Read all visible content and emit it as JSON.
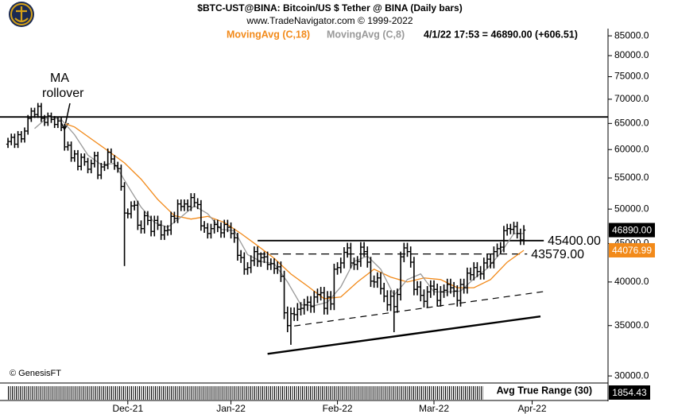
{
  "chart_data": {
    "type": "ohlc",
    "title": "$BTC-UST@BINA:  Bitcoin/US $ Tether @ BINA  (Daily bars)",
    "subtitle": "www.TradeNavigator.com © 1999-2022",
    "status": "4/1/22 17:53 = 46890.00 (+606.51)",
    "credit": "© GenesisFT",
    "annotation_lines": [
      "MA",
      "rollover"
    ],
    "log_scale": true,
    "xlim": [
      -2.4,
      180.3
    ],
    "ylim": [
      29500,
      86900
    ],
    "yticks": [
      {
        "value": 30000,
        "label": "30000.0"
      },
      {
        "value": 35000,
        "label": "35000.0"
      },
      {
        "value": 40000,
        "label": "40000.0"
      },
      {
        "value": 45000,
        "label": "45000.0"
      },
      {
        "value": 50000,
        "label": "50000.0"
      },
      {
        "value": 55000,
        "label": "55000.0"
      },
      {
        "value": 60000,
        "label": "60000.0"
      },
      {
        "value": 65000,
        "label": "65000.0"
      },
      {
        "value": 70000,
        "label": "70000.0"
      },
      {
        "value": 75000,
        "label": "75000.0"
      },
      {
        "value": 80000,
        "label": "80000.0"
      },
      {
        "value": 85000,
        "label": "85000.0"
      }
    ],
    "xticks": [
      {
        "value": 36,
        "label": "Dec-21"
      },
      {
        "value": 67,
        "label": "Jan-22"
      },
      {
        "value": 99,
        "label": "Feb-22"
      },
      {
        "value": 128,
        "label": "Mar-22"
      },
      {
        "value": 157.5,
        "label": "Apr-22"
      }
    ],
    "bar_color": "#000000",
    "open": [
      61000,
      61500,
      62300,
      61000,
      62800,
      62000,
      63500,
      66000,
      67500,
      66800,
      68500,
      66000,
      65200,
      66500,
      65800,
      64800,
      65500,
      64200,
      60500,
      60800,
      58500,
      59200,
      57000,
      58600,
      57800,
      56500,
      57500,
      58900,
      55500,
      56900,
      57200,
      59500,
      58300,
      57100,
      56600,
      53600,
      49400,
      49300,
      50500,
      50600,
      47600,
      47100,
      49000,
      48300,
      46700,
      48300,
      47600,
      46200,
      46800,
      46900,
      48900,
      48600,
      50800,
      50400,
      50800,
      50400,
      51800,
      51000,
      50700,
      47500,
      47200,
      46400,
      47100,
      47700,
      47300,
      46500,
      47700,
      47300,
      46400,
      45800,
      43400,
      43100,
      41600,
      41800,
      42700,
      43900,
      42600,
      43100,
      43200,
      42200,
      42300,
      41700,
      41900,
      40700,
      36400,
      35000,
      36300,
      36200,
      36800,
      36900,
      37300,
      37600,
      37100,
      38200,
      38500,
      38700,
      36900,
      38200,
      37400,
      41600,
      41800,
      42400,
      43800,
      44400,
      42400,
      42200,
      42600,
      44500,
      43900,
      42500,
      40100,
      40000,
      40500,
      39200,
      38300,
      37300,
      38300,
      37100,
      38500,
      43200,
      44400,
      43900,
      42500,
      39100,
      39400,
      38400,
      37700,
      38800,
      39500,
      39100,
      37800,
      38800,
      39000,
      39700,
      39300,
      38900,
      37800,
      39700,
      39300,
      41100,
      40900,
      41800,
      41300,
      41000,
      42400,
      42900,
      42400,
      43900,
      44300,
      44500,
      46800,
      47100,
      47000,
      47400,
      46400,
      45500
    ],
    "high": [
      62200,
      63000,
      63000,
      63500,
      63500,
      64200,
      66700,
      68200,
      68200,
      69200,
      69200,
      66700,
      67200,
      67200,
      66500,
      66200,
      66200,
      64900,
      61500,
      61500,
      59900,
      59900,
      59300,
      59300,
      58500,
      58200,
      59600,
      59600,
      57600,
      57900,
      60200,
      60200,
      59000,
      57800,
      57300,
      54300,
      50100,
      51200,
      51300,
      51300,
      48300,
      49700,
      49700,
      49000,
      49000,
      49000,
      48300,
      47500,
      47600,
      49600,
      49600,
      51500,
      51500,
      51500,
      51500,
      52500,
      52500,
      51700,
      51400,
      48200,
      47900,
      47800,
      48400,
      48400,
      48000,
      48400,
      48400,
      48000,
      47100,
      46500,
      44100,
      43800,
      42500,
      43400,
      44600,
      44600,
      43800,
      43900,
      43900,
      43000,
      43000,
      42600,
      42600,
      41400,
      37100,
      37000,
      37000,
      37500,
      37600,
      38000,
      38300,
      38300,
      38900,
      39200,
      39400,
      39400,
      38900,
      38900,
      42300,
      42500,
      43100,
      44500,
      45100,
      45100,
      43100,
      43300,
      45200,
      45200,
      44600,
      43200,
      40800,
      41200,
      41200,
      39900,
      39000,
      39000,
      39000,
      39200,
      43900,
      45100,
      45100,
      44600,
      43200,
      40100,
      40100,
      39100,
      39500,
      40200,
      40200,
      39800,
      39500,
      39700,
      40400,
      40400,
      40000,
      39600,
      40400,
      40400,
      41800,
      41800,
      42500,
      42500,
      42000,
      43100,
      43600,
      43600,
      44600,
      45000,
      45200,
      47500,
      47800,
      47800,
      48100,
      48100,
      47100,
      47600
    ],
    "low": [
      60300,
      60800,
      60300,
      60300,
      61300,
      61300,
      62800,
      65300,
      66100,
      66100,
      65300,
      64500,
      64500,
      65100,
      64100,
      64100,
      63500,
      59800,
      59800,
      57800,
      57800,
      56300,
      56300,
      57100,
      55800,
      55800,
      56800,
      54800,
      54800,
      56200,
      56500,
      57600,
      56400,
      55900,
      52900,
      42000,
      48600,
      48600,
      49800,
      46900,
      46400,
      46400,
      47600,
      46000,
      46000,
      46900,
      45500,
      45500,
      46100,
      46200,
      47900,
      47900,
      49700,
      49700,
      49700,
      49700,
      50300,
      50000,
      46800,
      46500,
      45700,
      45700,
      46400,
      46600,
      45800,
      45800,
      46600,
      45700,
      45100,
      42700,
      42400,
      40900,
      40900,
      41100,
      42000,
      41900,
      41900,
      42400,
      41500,
      41500,
      41000,
      41000,
      40000,
      35700,
      34300,
      33000,
      35500,
      35500,
      36100,
      36200,
      36600,
      36400,
      36400,
      37500,
      37800,
      36200,
      36200,
      36700,
      36700,
      40900,
      41100,
      41700,
      43100,
      41700,
      41500,
      41500,
      41900,
      43200,
      41800,
      39400,
      39300,
      39300,
      38500,
      37600,
      36600,
      36600,
      34300,
      36400,
      37800,
      42500,
      43200,
      41800,
      38400,
      38400,
      37700,
      37000,
      37000,
      38100,
      38400,
      37100,
      37100,
      38100,
      38300,
      38600,
      38200,
      37100,
      37100,
      38600,
      38600,
      40200,
      40200,
      40600,
      40300,
      40300,
      41700,
      41700,
      41700,
      43200,
      43600,
      43800,
      46100,
      46300,
      46300,
      45700,
      44800,
      44800
    ],
    "close": [
      61500,
      62300,
      61000,
      62800,
      62000,
      63500,
      66000,
      67500,
      66800,
      68500,
      66000,
      65200,
      66500,
      65800,
      64800,
      65500,
      64200,
      60500,
      60800,
      58500,
      59200,
      57000,
      58600,
      57800,
      56500,
      57500,
      58900,
      55500,
      56900,
      57200,
      59500,
      58300,
      57100,
      56600,
      53600,
      49400,
      49300,
      50500,
      50600,
      47600,
      47100,
      49000,
      48300,
      46700,
      48300,
      47600,
      46200,
      46800,
      46900,
      48900,
      48600,
      50800,
      50400,
      50800,
      50400,
      51800,
      51000,
      50700,
      47500,
      47200,
      46400,
      47100,
      47700,
      47300,
      46500,
      47700,
      47300,
      46400,
      45800,
      43400,
      43100,
      41600,
      41800,
      42700,
      43900,
      42600,
      43100,
      43200,
      42200,
      42300,
      41700,
      41900,
      40700,
      36400,
      35000,
      36300,
      36200,
      36800,
      36900,
      37300,
      37600,
      37100,
      38200,
      38500,
      38700,
      36900,
      38200,
      37400,
      41600,
      41800,
      42400,
      43800,
      44400,
      42400,
      42200,
      42600,
      44500,
      43900,
      42500,
      40100,
      40000,
      40500,
      39200,
      38300,
      37300,
      38300,
      37100,
      38500,
      43200,
      44400,
      43900,
      42500,
      39100,
      39400,
      38400,
      37700,
      38800,
      39500,
      39100,
      37800,
      38800,
      39000,
      39700,
      39300,
      38900,
      37800,
      39700,
      39300,
      41100,
      40900,
      41800,
      41300,
      41000,
      42400,
      42900,
      42400,
      43900,
      44300,
      44500,
      46800,
      47100,
      47000,
      47400,
      46400,
      45500,
      46890
    ],
    "last_close_label": "46890.00",
    "series": [
      {
        "name": "MovingAvg (C,18)",
        "color": "#f28a1a",
        "x": [
          17,
          20,
          25,
          30,
          35,
          40,
          45,
          50,
          55,
          60,
          65,
          70,
          75,
          80,
          85,
          90,
          95,
          100,
          105,
          110,
          115,
          120,
          125,
          130,
          135,
          140,
          145,
          150,
          155
        ],
        "values": [
          65000,
          64300,
          62000,
          59800,
          57600,
          54800,
          51500,
          49000,
          48500,
          48900,
          48000,
          46400,
          44700,
          43000,
          41000,
          39500,
          38000,
          38200,
          40000,
          41600,
          40600,
          40000,
          40500,
          40300,
          39300,
          39300,
          40300,
          42500,
          44076.99
        ]
      },
      {
        "name": "MovingAvg (C,8)",
        "color": "#999999",
        "x": [
          8,
          12,
          16,
          20,
          24,
          28,
          32,
          36,
          40,
          44,
          48,
          52,
          56,
          60,
          64,
          68,
          72,
          76,
          80,
          84,
          88,
          92,
          96,
          100,
          104,
          108,
          112,
          116,
          120,
          124,
          128,
          132,
          136,
          140,
          144,
          148,
          152,
          155
        ],
        "values": [
          64000,
          66300,
          65800,
          62800,
          59000,
          57300,
          57500,
          53700,
          50300,
          48000,
          47300,
          48800,
          50500,
          49300,
          47000,
          46800,
          43500,
          42600,
          42300,
          40000,
          37300,
          37200,
          37600,
          39400,
          42600,
          43300,
          41600,
          38400,
          40300,
          41000,
          38800,
          38800,
          38900,
          40400,
          41700,
          43700,
          46400,
          46400
        ]
      }
    ],
    "levels": [
      {
        "value": 66300,
        "x": [
          -2.4,
          180.3
        ],
        "style": "solid"
      },
      {
        "value": 45400,
        "x": [
          75,
          161
        ],
        "style": "solid",
        "label": "45400.00"
      },
      {
        "value": 43579,
        "x": [
          75,
          156
        ],
        "style": "dashed",
        "label": "43579.00"
      }
    ],
    "trendlines": [
      {
        "x": [
          78,
          160
        ],
        "y": [
          32100,
          36000
        ],
        "style": "solid"
      },
      {
        "x": [
          86,
          162
        ],
        "y": [
          34960,
          38900
        ],
        "style": "dashed"
      }
    ],
    "atr": {
      "label": "Avg True Range (30)",
      "value": 1854.43
    }
  }
}
